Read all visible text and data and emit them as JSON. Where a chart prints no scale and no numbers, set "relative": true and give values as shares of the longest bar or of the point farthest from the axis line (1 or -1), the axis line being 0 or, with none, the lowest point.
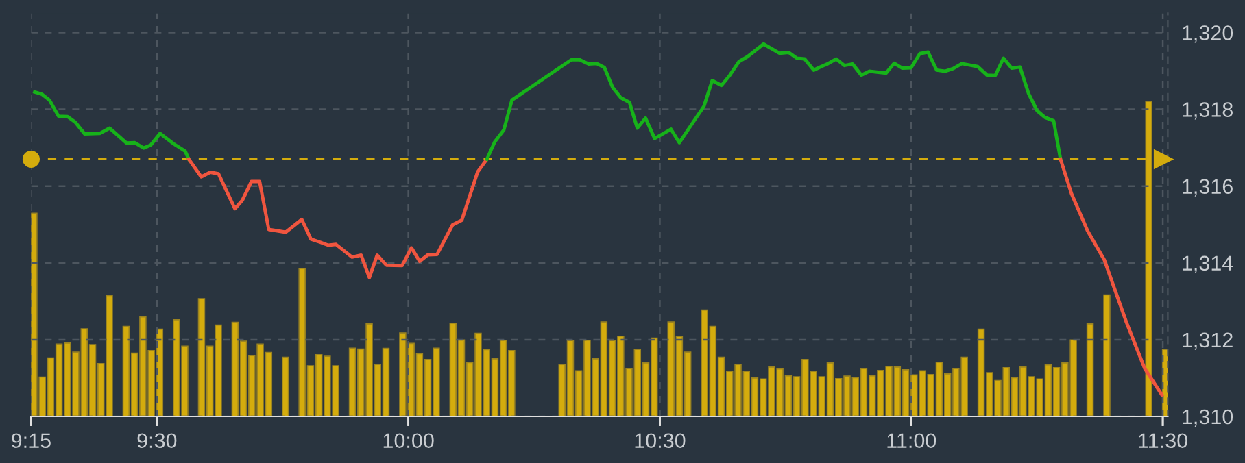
{
  "chart_data": [
    {
      "type": "line",
      "xlim": [
        9.25,
        11.51
      ],
      "ylim": [
        1310,
        1320.5
      ],
      "xticks": [
        {
          "value": 9.25,
          "label": null
        },
        {
          "value": 9.5,
          "label": null
        },
        {
          "value": 10,
          "label": null
        },
        {
          "value": 10.5,
          "label": null
        },
        {
          "value": 11,
          "label": null
        },
        {
          "value": 11.5,
          "label": null
        }
      ],
      "yticks": [
        {
          "value": 1310,
          "label": "1,310"
        },
        {
          "value": 1312,
          "label": "1,312"
        },
        {
          "value": 1314,
          "label": "1,314"
        },
        {
          "value": 1316,
          "label": "1,316"
        },
        {
          "value": 1318,
          "label": "1,318"
        },
        {
          "value": 1320,
          "label": "1,320"
        }
      ],
      "grid": true,
      "marker": "none",
      "line_style": "solid",
      "tick_labels": "y",
      "ref_lines": [
        {
          "axis": "y",
          "value": 1316.7,
          "color": "#d4ac0d",
          "line_style": "dashed"
        }
      ],
      "series": [
        {
          "color": "#17b21a",
          "x": [
            9.2572,
            9.2718,
            9.2863,
            9.3045,
            9.3225,
            9.338,
            9.3563,
            9.3863,
            9.4062,
            9.4398,
            9.4562,
            9.4737,
            9.488,
            9.5063,
            9.5335,
            9.5562,
            9.5635
          ],
          "values": [
            1318.45,
            1318.39,
            1318.24,
            1317.82,
            1317.81,
            1317.66,
            1317.36,
            1317.37,
            1317.51,
            1317.12,
            1317.13,
            1316.99,
            1317.07,
            1317.37,
            1317.1,
            1316.91,
            1316.7
          ]
        },
        {
          "color": "#f0553f",
          "x": [
            9.5635,
            9.5882,
            9.6062,
            9.6225,
            9.6552,
            9.67,
            9.688,
            9.7043,
            9.7225,
            9.7562,
            9.788,
            9.8063,
            9.8243,
            9.8407,
            9.8562,
            9.888,
            9.9062,
            9.9225,
            9.938,
            9.9563,
            9.9878,
            10.0062,
            10.0225,
            10.0389,
            10.0572,
            10.088,
            10.1063,
            10.1378,
            10.1562
          ],
          "values": [
            1316.7,
            1316.24,
            1316.36,
            1316.32,
            1315.41,
            1315.63,
            1316.12,
            1316.12,
            1314.87,
            1314.8,
            1315.13,
            1314.62,
            1314.54,
            1314.46,
            1314.48,
            1314.15,
            1314.2,
            1313.62,
            1314.2,
            1313.94,
            1313.93,
            1314.39,
            1314.04,
            1314.21,
            1314.22,
            1314.99,
            1315.11,
            1316.37,
            1316.7
          ]
        },
        {
          "color": "#17b21a",
          "x": [
            10.1562,
            10.1717,
            10.1898,
            10.206,
            10.306,
            10.3243,
            10.3407,
            10.3587,
            10.3743,
            10.3898,
            10.4062,
            10.4225,
            10.4397,
            10.4552,
            10.4717,
            10.4897,
            10.5223,
            10.5387,
            10.5878,
            10.6042,
            10.6225,
            10.6388,
            10.6572,
            10.6743,
            10.7062,
            10.7378,
            10.7562,
            10.7725,
            10.788,
            10.806,
            10.8223,
            10.8333,
            10.8507,
            10.867,
            10.8833,
            10.9005,
            10.9168,
            10.9497,
            10.966,
            10.9823,
            10.9995,
            11.017,
            11.0333,
            11.0505,
            11.0668,
            11.0833,
            11.1005,
            11.1323,
            11.1505,
            11.167,
            11.1833,
            11.1997,
            11.216,
            11.2332,
            11.2503,
            11.2658,
            11.283,
            11.2967
          ],
          "values": [
            1316.7,
            1317.15,
            1317.46,
            1318.24,
            1319.13,
            1319.29,
            1319.29,
            1319.18,
            1319.19,
            1319.09,
            1318.57,
            1318.3,
            1318.18,
            1317.51,
            1317.77,
            1317.24,
            1317.48,
            1317.13,
            1318.08,
            1318.75,
            1318.62,
            1318.88,
            1319.24,
            1319.37,
            1319.7,
            1319.46,
            1319.48,
            1319.33,
            1319.31,
            1319.02,
            1319.12,
            1319.18,
            1319.31,
            1319.14,
            1319.18,
            1318.89,
            1318.99,
            1318.94,
            1319.2,
            1319.07,
            1319.08,
            1319.45,
            1319.49,
            1319.02,
            1318.99,
            1319.06,
            1319.19,
            1319.11,
            1318.89,
            1318.88,
            1319.33,
            1319.07,
            1319.1,
            1318.41,
            1317.96,
            1317.79,
            1317.7,
            1316.7
          ]
        },
        {
          "color": "#f0553f",
          "x": [
            11.2967,
            11.3185,
            11.3503,
            11.384,
            11.4275,
            11.464,
            11.4983
          ],
          "values": [
            1316.7,
            1315.8,
            1314.84,
            1314.07,
            1312.46,
            1311.25,
            1310.56
          ]
        }
      ]
    },
    {
      "type": "bar",
      "relative": true,
      "tick_labels": "x",
      "color": "#d4ac0d",
      "xlim": [
        9.25,
        11.51
      ],
      "xticks": [
        {
          "value": 9.25,
          "label": "9:15"
        },
        {
          "value": 9.5,
          "label": "9:30"
        },
        {
          "value": 10,
          "label": "10:00"
        },
        {
          "value": 10.5,
          "label": "10:30"
        },
        {
          "value": 11,
          "label": "11:00"
        },
        {
          "value": 11.5,
          "label": "11:30"
        }
      ],
      "x": [
        9.2555,
        9.2722,
        9.2888,
        9.3055,
        9.3222,
        9.3388,
        9.3555,
        9.3722,
        9.3888,
        9.4055,
        9.4388,
        9.4555,
        9.4722,
        9.4888,
        9.5055,
        9.5388,
        9.5555,
        9.5888,
        9.6055,
        9.6222,
        9.6555,
        9.6722,
        9.6888,
        9.7055,
        9.7222,
        9.7555,
        9.7888,
        9.8055,
        9.8222,
        9.8388,
        9.8555,
        9.8888,
        9.9055,
        9.9222,
        9.9388,
        9.9555,
        9.9888,
        10.0055,
        10.0222,
        10.0388,
        10.0555,
        10.0888,
        10.1055,
        10.1222,
        10.1388,
        10.1555,
        10.1722,
        10.1888,
        10.2055,
        10.3055,
        10.3222,
        10.3388,
        10.3555,
        10.3722,
        10.3888,
        10.4055,
        10.4222,
        10.4388,
        10.4555,
        10.4722,
        10.4888,
        10.5222,
        10.5388,
        10.5555,
        10.5888,
        10.6055,
        10.6222,
        10.6388,
        10.6555,
        10.6722,
        10.6888,
        10.7055,
        10.7222,
        10.7388,
        10.7555,
        10.7722,
        10.7888,
        10.8055,
        10.8222,
        10.8388,
        10.8555,
        10.8722,
        10.8888,
        10.9055,
        10.9222,
        10.9388,
        10.9555,
        10.9722,
        10.9888,
        11.0055,
        11.0222,
        11.0388,
        11.0555,
        11.0722,
        11.0888,
        11.1055,
        11.1388,
        11.1555,
        11.1722,
        11.1888,
        11.2055,
        11.2222,
        11.2388,
        11.2555,
        11.2722,
        11.2888,
        11.3055,
        11.3222,
        11.3555,
        11.3888,
        11.4722,
        11.5055
      ],
      "values": [
        0.645,
        0.125,
        0.186,
        0.23,
        0.233,
        0.204,
        0.278,
        0.228,
        0.168,
        0.384,
        0.286,
        0.201,
        0.316,
        0.209,
        0.277,
        0.307,
        0.223,
        0.374,
        0.223,
        0.29,
        0.299,
        0.239,
        0.193,
        0.23,
        0.203,
        0.188,
        0.47,
        0.161,
        0.196,
        0.191,
        0.161,
        0.217,
        0.214,
        0.294,
        0.165,
        0.216,
        0.265,
        0.232,
        0.199,
        0.181,
        0.217,
        0.296,
        0.243,
        0.171,
        0.264,
        0.212,
        0.183,
        0.242,
        0.209,
        0.165,
        0.241,
        0.145,
        0.242,
        0.183,
        0.3,
        0.241,
        0.255,
        0.152,
        0.213,
        0.17,
        0.249,
        0.3,
        0.254,
        0.204,
        0.338,
        0.286,
        0.188,
        0.143,
        0.165,
        0.143,
        0.122,
        0.119,
        0.157,
        0.151,
        0.129,
        0.126,
        0.181,
        0.143,
        0.126,
        0.17,
        0.12,
        0.128,
        0.123,
        0.152,
        0.129,
        0.146,
        0.159,
        0.157,
        0.148,
        0.132,
        0.145,
        0.133,
        0.172,
        0.135,
        0.152,
        0.188,
        0.277,
        0.139,
        0.114,
        0.155,
        0.123,
        0.157,
        0.126,
        0.119,
        0.164,
        0.155,
        0.17,
        0.243,
        0.294,
        0.386,
        1,
        0.213
      ]
    }
  ]
}
